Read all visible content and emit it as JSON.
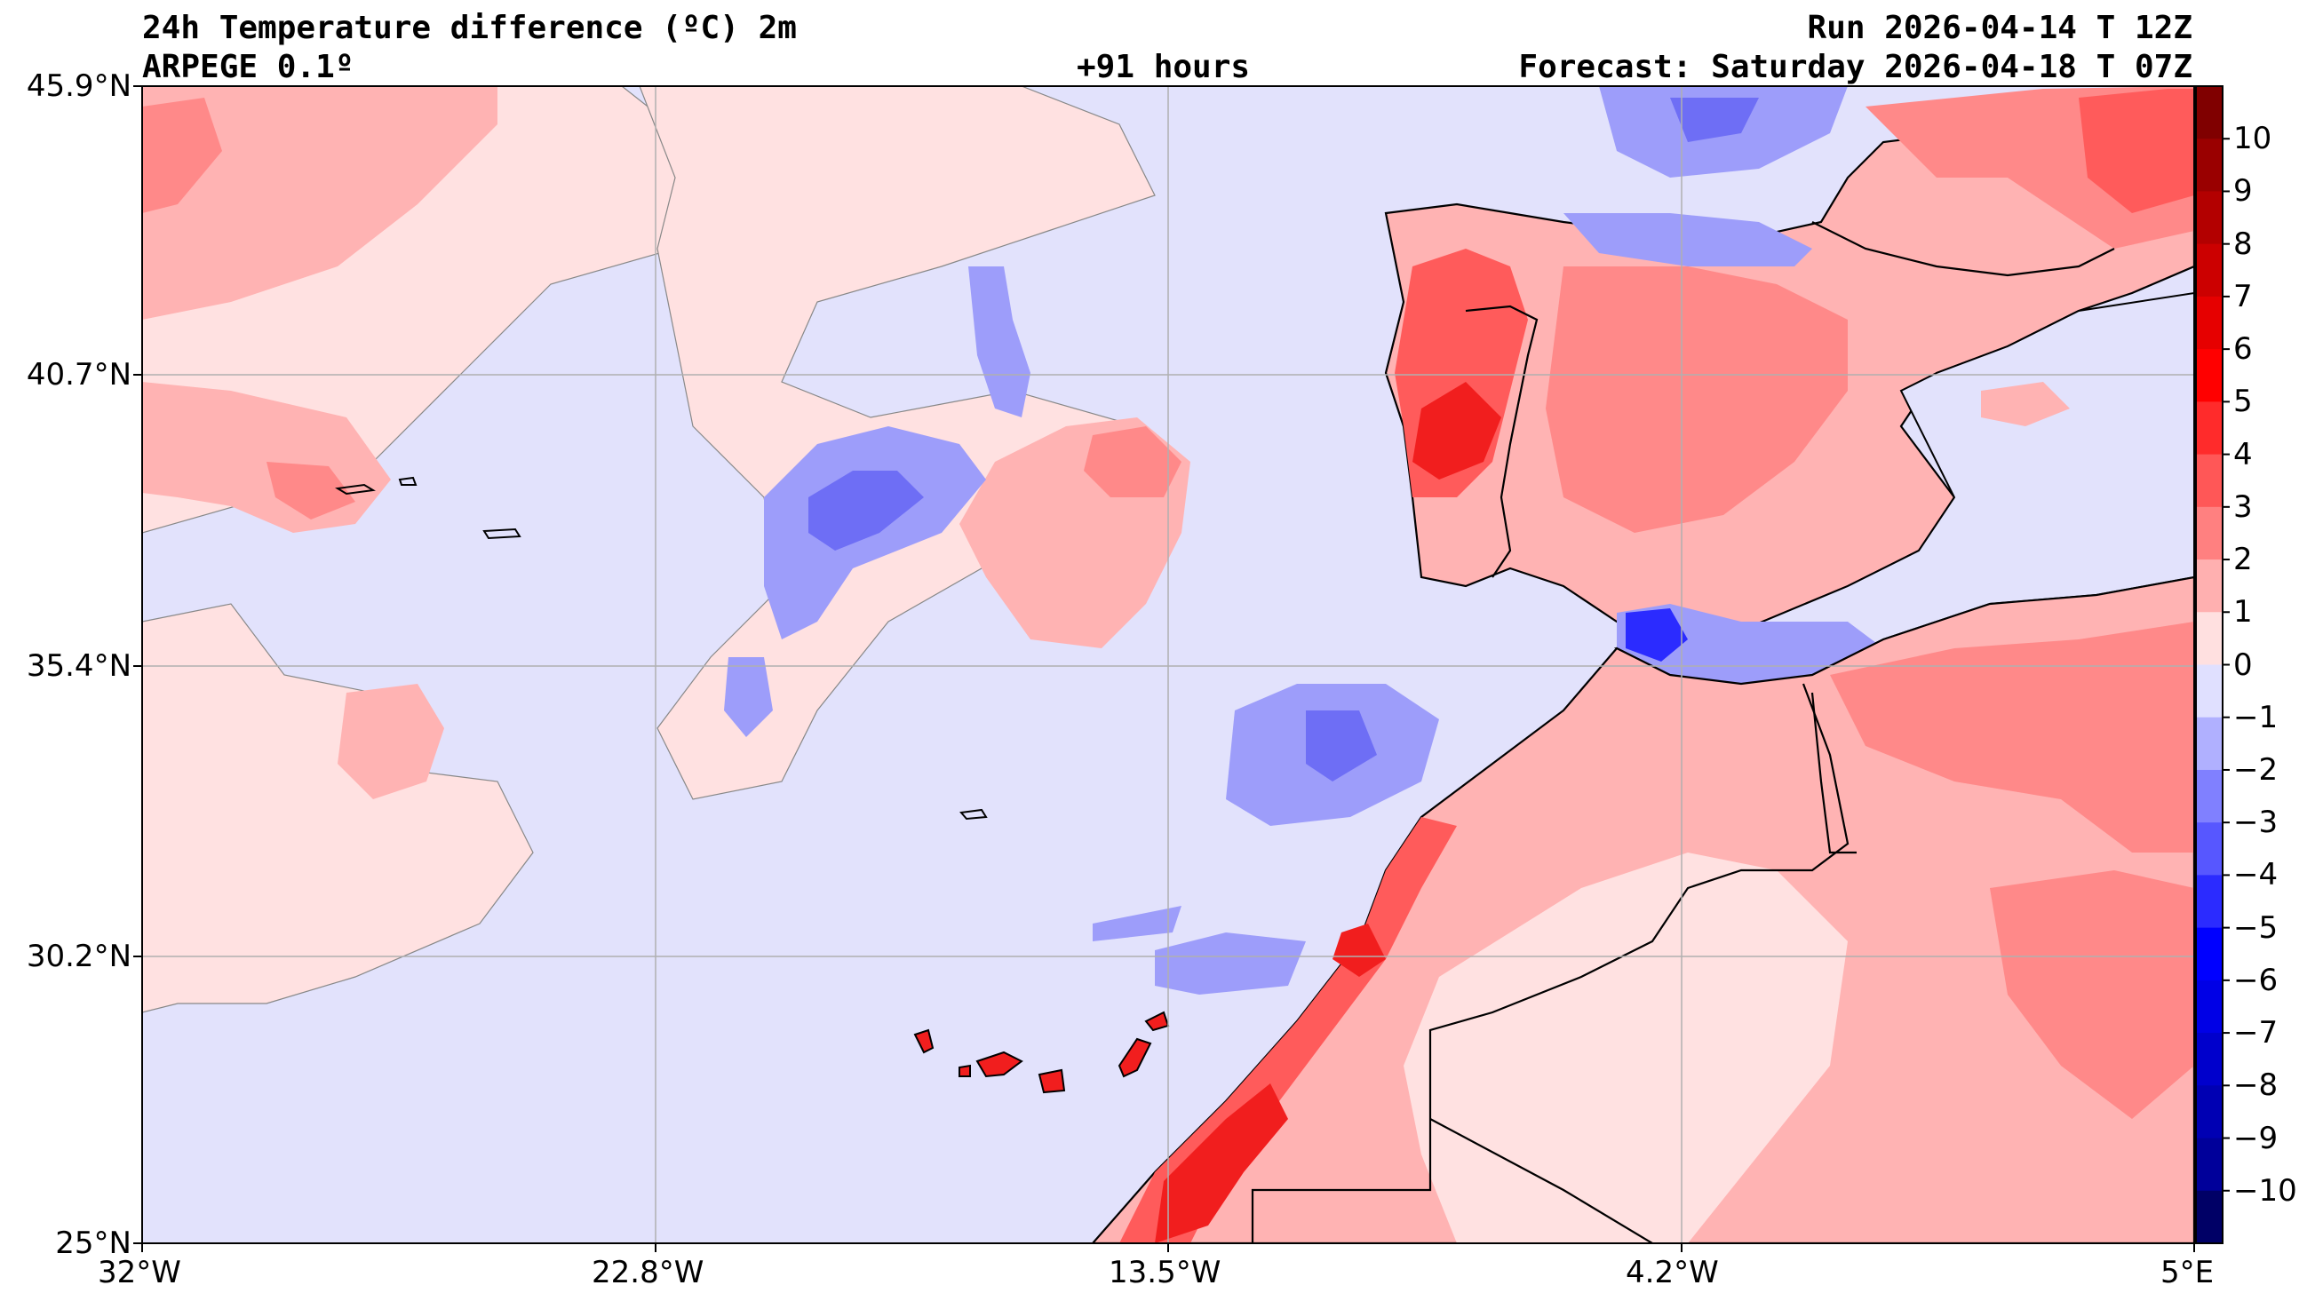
{
  "header": {
    "title_line1": "24h Temperature difference (ºC) 2m",
    "title_line2": "ARPEGE 0.1º",
    "lead_time": "+91 hours",
    "run": "Run 2026-04-14 T 12Z",
    "forecast": "Forecast: Saturday 2026-04-18 T 07Z"
  },
  "axes": {
    "lat_labels": [
      "45.9°N",
      "40.7°N",
      "35.4°N",
      "30.2°N",
      "25°N"
    ],
    "lon_labels": [
      "32°W",
      "22.8°W",
      "13.5°W",
      "4.2°W",
      "5°E"
    ]
  },
  "colorbar": {
    "ticks": [
      "10",
      "9",
      "8",
      "7",
      "6",
      "5",
      "4",
      "3",
      "2",
      "1",
      "0",
      "−1",
      "−2",
      "−3",
      "−4",
      "−5",
      "−6",
      "−7",
      "−8",
      "−9",
      "−10"
    ],
    "colors_top_to_bottom": [
      "#800000",
      "#9a0000",
      "#b30000",
      "#cc0000",
      "#e60000",
      "#ff0000",
      "#ff2b2b",
      "#ff5757",
      "#ff8080",
      "#ffb0b0",
      "#ffe0e0",
      "#e0e0ff",
      "#b0b0ff",
      "#8080ff",
      "#5757ff",
      "#2b2bff",
      "#0000ff",
      "#0000e6",
      "#0000cc",
      "#0000b3",
      "#00009a",
      "#000066"
    ]
  },
  "field_colors": {
    "neg3": "#6e6ef5",
    "neg2": "#9d9dfa",
    "neg1": "#e2e2fc",
    "pos0": "#ffe1e1",
    "pos1": "#ffb3b3",
    "pos2": "#ff8989",
    "pos3": "#ff5b5b",
    "pos4": "#f11e1e"
  }
}
